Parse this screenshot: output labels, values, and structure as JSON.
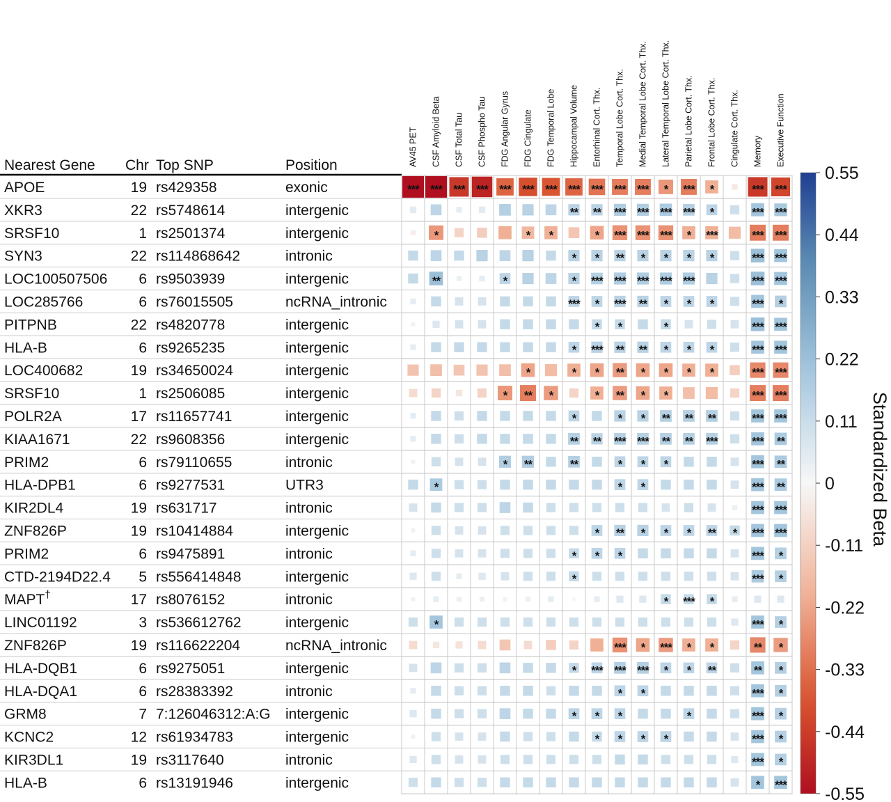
{
  "chart_data": {
    "type": "heatmap",
    "table_headers": [
      "Nearest Gene",
      "Chr",
      "Top SNP",
      "Position"
    ],
    "columns": [
      "AV45 PET",
      "CSF Amyloid Beta",
      "CSF Total Tau",
      "CSF Phospho Tau",
      "FDG Angular Gyrus",
      "FDG Cingulate",
      "FDG Temporal Lobe",
      "Hippocampal Volume",
      "Entorhinal Cort. Thx.",
      "Temporal Lobe Cort. Thx.",
      "Medial Temporal Lobe Cort. Thx.",
      "Lateral Temporal Lobe Cort. Thx.",
      "Parietal Lobe Cort. Thx.",
      "Frontal Lobe Cort. Thx.",
      "Cingulate Cort. Thx.",
      "Memory",
      "Executive Function"
    ],
    "rows": [
      {
        "gene": "APOE",
        "chr": "19",
        "snp": "rs429358",
        "position": "exonic"
      },
      {
        "gene": "XKR3",
        "chr": "22",
        "snp": "rs5748614",
        "position": "intergenic"
      },
      {
        "gene": "SRSF10",
        "chr": "1",
        "snp": "rs2501374",
        "position": "intergenic"
      },
      {
        "gene": "SYN3",
        "chr": "22",
        "snp": "rs114868642",
        "position": "intronic"
      },
      {
        "gene": "LOC100507506",
        "chr": "6",
        "snp": "rs9503939",
        "position": "intergenic"
      },
      {
        "gene": "LOC285766",
        "chr": "6",
        "snp": "rs76015505",
        "position": "ncRNA_intronic"
      },
      {
        "gene": "PITPNB",
        "chr": "22",
        "snp": "rs4820778",
        "position": "intergenic"
      },
      {
        "gene": "HLA-B",
        "chr": "6",
        "snp": "rs9265235",
        "position": "intergenic"
      },
      {
        "gene": "LOC400682",
        "chr": "19",
        "snp": "rs34650024",
        "position": "intergenic"
      },
      {
        "gene": "SRSF10",
        "chr": "1",
        "snp": "rs2506085",
        "position": "intergenic"
      },
      {
        "gene": "POLR2A",
        "chr": "17",
        "snp": "rs11657741",
        "position": "intergenic"
      },
      {
        "gene": "KIAA1671",
        "chr": "22",
        "snp": "rs9608356",
        "position": "intergenic"
      },
      {
        "gene": "PRIM2",
        "chr": "6",
        "snp": "rs79110655",
        "position": "intronic"
      },
      {
        "gene": "HLA-DPB1",
        "chr": "6",
        "snp": "rs9277531",
        "position": "UTR3"
      },
      {
        "gene": "KIR2DL4",
        "chr": "19",
        "snp": "rs631717",
        "position": "intronic"
      },
      {
        "gene": "ZNF826P",
        "chr": "19",
        "snp": "rs10414884",
        "position": "intergenic"
      },
      {
        "gene": "PRIM2",
        "chr": "6",
        "snp": "rs9475891",
        "position": "intronic"
      },
      {
        "gene": "CTD-2194D22.4",
        "chr": "5",
        "snp": "rs556414848",
        "position": "intergenic"
      },
      {
        "gene": "MAPT",
        "gene_mark": "†",
        "chr": "17",
        "snp": "rs8076152",
        "position": "intronic"
      },
      {
        "gene": "LINC01192",
        "chr": "3",
        "snp": "rs536612762",
        "position": "intergenic"
      },
      {
        "gene": "ZNF826P",
        "chr": "19",
        "snp": "rs116622204",
        "position": "ncRNA_intronic"
      },
      {
        "gene": "HLA-DQB1",
        "chr": "6",
        "snp": "rs9275051",
        "position": "intergenic"
      },
      {
        "gene": "HLA-DQA1",
        "chr": "6",
        "snp": "rs28383392",
        "position": "intronic"
      },
      {
        "gene": "GRM8",
        "chr": "7",
        "snp": "7:126046312:A:G",
        "position": "intergenic"
      },
      {
        "gene": "KCNC2",
        "chr": "12",
        "snp": "rs61934783",
        "position": "intergenic"
      },
      {
        "gene": "KIR3DL1",
        "chr": "19",
        "snp": "rs3117640",
        "position": "intronic"
      },
      {
        "gene": "HLA-B",
        "chr": "6",
        "snp": "rs13191946",
        "position": "intergenic"
      }
    ],
    "values": [
      [
        -0.55,
        -0.55,
        -0.45,
        -0.5,
        -0.35,
        -0.4,
        -0.38,
        -0.35,
        -0.32,
        -0.3,
        -0.3,
        -0.25,
        -0.3,
        -0.2,
        -0.04,
        -0.45,
        -0.42
      ],
      [
        0.05,
        0.14,
        0.04,
        0.05,
        0.16,
        0.15,
        0.14,
        0.15,
        0.15,
        0.17,
        0.17,
        0.18,
        0.16,
        0.14,
        0.1,
        0.2,
        0.19
      ],
      [
        -0.03,
        -0.25,
        -0.1,
        -0.12,
        -0.2,
        -0.18,
        -0.2,
        -0.14,
        -0.22,
        -0.26,
        -0.26,
        -0.26,
        -0.2,
        -0.2,
        -0.17,
        -0.3,
        -0.3
      ],
      [
        0.12,
        0.14,
        0.12,
        0.15,
        0.14,
        0.15,
        0.12,
        0.15,
        0.15,
        0.15,
        0.15,
        0.15,
        0.15,
        0.15,
        0.1,
        0.22,
        0.2
      ],
      [
        0.12,
        0.22,
        0.03,
        0.04,
        0.14,
        0.15,
        0.14,
        0.15,
        0.16,
        0.17,
        0.17,
        0.17,
        0.17,
        0.15,
        0.1,
        0.22,
        0.2
      ],
      [
        0.04,
        0.12,
        0.08,
        0.08,
        0.12,
        0.12,
        0.12,
        0.14,
        0.14,
        0.15,
        0.15,
        0.14,
        0.14,
        0.14,
        0.1,
        0.2,
        0.16
      ],
      [
        0.02,
        0.06,
        0.08,
        0.08,
        0.12,
        0.12,
        0.12,
        0.12,
        0.12,
        0.12,
        0.12,
        0.12,
        0.08,
        0.1,
        0.08,
        0.22,
        0.2
      ],
      [
        0.04,
        0.12,
        0.12,
        0.12,
        0.12,
        0.12,
        0.12,
        0.14,
        0.15,
        0.15,
        0.15,
        0.14,
        0.14,
        0.14,
        0.1,
        0.2,
        0.2
      ],
      [
        -0.15,
        -0.16,
        -0.14,
        -0.15,
        -0.16,
        -0.22,
        -0.17,
        -0.2,
        -0.22,
        -0.24,
        -0.22,
        -0.22,
        -0.2,
        -0.2,
        -0.12,
        -0.28,
        -0.28
      ],
      [
        -0.08,
        -0.1,
        -0.05,
        -0.1,
        -0.25,
        -0.3,
        -0.24,
        -0.1,
        -0.2,
        -0.24,
        -0.22,
        -0.2,
        -0.16,
        -0.17,
        -0.1,
        -0.3,
        -0.3
      ],
      [
        0.04,
        0.12,
        0.1,
        0.12,
        0.12,
        0.12,
        0.12,
        0.14,
        0.12,
        0.15,
        0.15,
        0.16,
        0.16,
        0.16,
        0.1,
        0.2,
        0.2
      ],
      [
        0.04,
        0.12,
        0.1,
        0.12,
        0.12,
        0.12,
        0.12,
        0.16,
        0.15,
        0.16,
        0.16,
        0.16,
        0.16,
        0.16,
        0.1,
        0.2,
        0.18
      ],
      [
        0.02,
        0.1,
        0.08,
        0.08,
        0.17,
        0.17,
        0.12,
        0.16,
        0.12,
        0.14,
        0.14,
        0.14,
        0.12,
        0.12,
        0.08,
        0.2,
        0.18
      ],
      [
        0.12,
        0.18,
        0.1,
        0.1,
        0.12,
        0.12,
        0.12,
        0.12,
        0.12,
        0.14,
        0.14,
        0.12,
        0.12,
        0.12,
        0.08,
        0.2,
        0.18
      ],
      [
        0.08,
        0.12,
        0.1,
        0.1,
        0.14,
        0.12,
        0.1,
        0.1,
        0.1,
        0.1,
        0.1,
        0.08,
        0.1,
        0.08,
        0.03,
        0.2,
        0.2
      ],
      [
        0.02,
        0.1,
        0.08,
        0.08,
        0.1,
        0.1,
        0.1,
        0.1,
        0.14,
        0.15,
        0.15,
        0.14,
        0.14,
        0.14,
        0.12,
        0.2,
        0.2
      ],
      [
        0.04,
        0.1,
        0.08,
        0.08,
        0.1,
        0.1,
        0.1,
        0.12,
        0.14,
        0.14,
        0.12,
        0.12,
        0.12,
        0.12,
        0.08,
        0.2,
        0.16
      ],
      [
        0.06,
        0.1,
        0.04,
        0.06,
        0.08,
        0.1,
        0.1,
        0.12,
        0.1,
        0.1,
        0.1,
        0.1,
        0.1,
        0.1,
        0.08,
        0.18,
        0.16
      ],
      [
        0.02,
        0.04,
        0.03,
        0.03,
        0.02,
        0.03,
        0.04,
        0.01,
        0.04,
        0.06,
        0.06,
        0.12,
        0.12,
        0.12,
        0.04,
        0.06,
        0.06
      ],
      [
        0.1,
        0.2,
        0.1,
        0.1,
        0.1,
        0.1,
        0.1,
        0.1,
        0.1,
        0.1,
        0.1,
        0.1,
        0.1,
        0.1,
        0.06,
        0.2,
        0.16
      ],
      [
        -0.08,
        -0.05,
        -0.06,
        -0.08,
        -0.14,
        -0.08,
        -0.12,
        -0.1,
        -0.2,
        -0.26,
        -0.22,
        -0.24,
        -0.2,
        -0.2,
        -0.1,
        -0.28,
        -0.24
      ],
      [
        0.08,
        0.14,
        0.1,
        0.1,
        0.14,
        0.12,
        0.12,
        0.12,
        0.14,
        0.16,
        0.16,
        0.14,
        0.14,
        0.14,
        0.1,
        0.2,
        0.16
      ],
      [
        0.04,
        0.12,
        0.1,
        0.1,
        0.12,
        0.12,
        0.1,
        0.12,
        0.12,
        0.14,
        0.14,
        0.12,
        0.12,
        0.12,
        0.1,
        0.2,
        0.16
      ],
      [
        0.06,
        0.12,
        0.1,
        0.1,
        0.14,
        0.12,
        0.12,
        0.14,
        0.14,
        0.14,
        0.12,
        0.12,
        0.14,
        0.12,
        0.1,
        0.2,
        0.16
      ],
      [
        0.02,
        0.1,
        0.08,
        0.08,
        0.12,
        0.1,
        0.1,
        0.12,
        0.12,
        0.14,
        0.14,
        0.14,
        0.12,
        0.12,
        0.08,
        0.2,
        0.16
      ],
      [
        0.06,
        0.1,
        0.08,
        0.08,
        0.1,
        0.1,
        0.1,
        0.1,
        0.1,
        0.12,
        0.12,
        0.1,
        0.1,
        0.1,
        0.06,
        0.2,
        0.16
      ],
      [
        0.1,
        0.12,
        0.1,
        0.1,
        0.12,
        0.12,
        0.12,
        0.12,
        0.12,
        0.12,
        0.12,
        0.12,
        0.12,
        0.12,
        0.08,
        0.2,
        0.2
      ]
    ],
    "significance": [
      [
        "***",
        "***",
        "***",
        "***",
        "***",
        "***",
        "***",
        "***",
        "***",
        "***",
        "***",
        "*",
        "***",
        "*",
        "",
        "***",
        "***"
      ],
      [
        "",
        "",
        "",
        "",
        "",
        "",
        "",
        "**",
        "**",
        "***",
        "***",
        "***",
        "***",
        "*",
        "",
        "***",
        "***"
      ],
      [
        "",
        "*",
        "",
        "",
        "",
        "*",
        "*",
        "",
        "*",
        "***",
        "***",
        "***",
        "*",
        "***",
        "",
        "***",
        "***"
      ],
      [
        "",
        "",
        "",
        "",
        "",
        "",
        "",
        "*",
        "*",
        "**",
        "*",
        "*",
        "*",
        "*",
        "",
        "***",
        "***"
      ],
      [
        "",
        "**",
        "",
        "",
        "*",
        "",
        "",
        "*",
        "***",
        "***",
        "***",
        "***",
        "***",
        "",
        "",
        "***",
        "***"
      ],
      [
        "",
        "",
        "",
        "",
        "",
        "",
        "",
        "***",
        "*",
        "***",
        "**",
        "*",
        "*",
        "*",
        "",
        "***",
        "*"
      ],
      [
        "",
        "",
        "",
        "",
        "",
        "",
        "",
        "",
        "*",
        "*",
        "",
        "*",
        "",
        "",
        "",
        "***",
        "***"
      ],
      [
        "",
        "",
        "",
        "",
        "",
        "",
        "",
        "*",
        "***",
        "**",
        "**",
        "*",
        "*",
        "*",
        "",
        "***",
        "***"
      ],
      [
        "",
        "",
        "",
        "",
        "",
        "*",
        "",
        "*",
        "*",
        "**",
        "*",
        "*",
        "*",
        "*",
        "",
        "***",
        "***"
      ],
      [
        "",
        "",
        "",
        "",
        "*",
        "**",
        "*",
        "",
        "*",
        "**",
        "*",
        "*",
        "",
        "",
        "",
        "***",
        "***"
      ],
      [
        "",
        "",
        "",
        "",
        "",
        "",
        "",
        "*",
        "",
        "*",
        "*",
        "**",
        "**",
        "**",
        "",
        "***",
        "***"
      ],
      [
        "",
        "",
        "",
        "",
        "",
        "",
        "",
        "**",
        "**",
        "***",
        "***",
        "**",
        "**",
        "***",
        "",
        "***",
        "**"
      ],
      [
        "",
        "",
        "",
        "",
        "*",
        "**",
        "",
        "**",
        "",
        "*",
        "*",
        "*",
        "",
        "",
        "",
        "***",
        "**"
      ],
      [
        "",
        "*",
        "",
        "",
        "",
        "",
        "",
        "",
        "",
        "*",
        "*",
        "",
        "",
        "",
        "",
        "***",
        "**"
      ],
      [
        "",
        "",
        "",
        "",
        "",
        "",
        "",
        "",
        "",
        "",
        "",
        "",
        "",
        "",
        "",
        "***",
        "***"
      ],
      [
        "",
        "",
        "",
        "",
        "",
        "",
        "",
        "",
        "*",
        "**",
        "*",
        "*",
        "*",
        "**",
        "*",
        "***",
        "***"
      ],
      [
        "",
        "",
        "",
        "",
        "",
        "",
        "",
        "*",
        "*",
        "*",
        "",
        "",
        "",
        "",
        "",
        "***",
        "*"
      ],
      [
        "",
        "",
        "",
        "",
        "",
        "",
        "",
        "*",
        "",
        "",
        "",
        "",
        "",
        "",
        "",
        "***",
        "*"
      ],
      [
        "",
        "",
        "",
        "",
        "",
        "",
        "",
        "",
        "",
        "",
        "",
        "*",
        "***",
        "*",
        "",
        "",
        ""
      ],
      [
        "",
        "*",
        "",
        "",
        "",
        "",
        "",
        "",
        "",
        "",
        "",
        "",
        "",
        "",
        "",
        "***",
        "*"
      ],
      [
        "",
        "",
        "",
        "",
        "",
        "",
        "",
        "",
        "",
        "***",
        "*",
        "***",
        "*",
        "*",
        "",
        "**",
        "*"
      ],
      [
        "",
        "",
        "",
        "",
        "",
        "",
        "",
        "*",
        "***",
        "***",
        "***",
        "*",
        "*",
        "**",
        "",
        "**",
        "*"
      ],
      [
        "",
        "",
        "",
        "",
        "",
        "",
        "",
        "",
        "",
        "*",
        "*",
        "",
        "",
        "",
        "",
        "***",
        "*"
      ],
      [
        "",
        "",
        "",
        "",
        "",
        "",
        "",
        "*",
        "*",
        "*",
        "",
        "",
        "*",
        "",
        "",
        "***",
        "*"
      ],
      [
        "",
        "",
        "",
        "",
        "",
        "",
        "",
        "",
        "*",
        "*",
        "*",
        "*",
        "",
        "",
        "",
        "***",
        "*"
      ],
      [
        "",
        "",
        "",
        "",
        "",
        "",
        "",
        "",
        "",
        "",
        "",
        "",
        "",
        "",
        "",
        "***",
        "*"
      ],
      [
        "",
        "",
        "",
        "",
        "",
        "",
        "",
        "",
        "",
        "",
        "",
        "",
        "",
        "",
        "",
        "*",
        "***"
      ]
    ],
    "colorbar": {
      "label": "Standardized Beta",
      "ticks": [
        "0.55",
        "0.44",
        "0.33",
        "0.22",
        "0.11",
        "0",
        "-0.11",
        "-0.22",
        "-0.33",
        "-0.44",
        "-0.55"
      ],
      "range": [
        -0.55,
        0.55
      ],
      "colors": {
        "high": "#1f3f93",
        "mid_high": "#5e8fb4",
        "light_high": "#a7c8df",
        "zero": "#f7f7f7",
        "light_low": "#f1b49a",
        "mid_low": "#d9542f",
        "low": "#b00f1f"
      }
    }
  }
}
